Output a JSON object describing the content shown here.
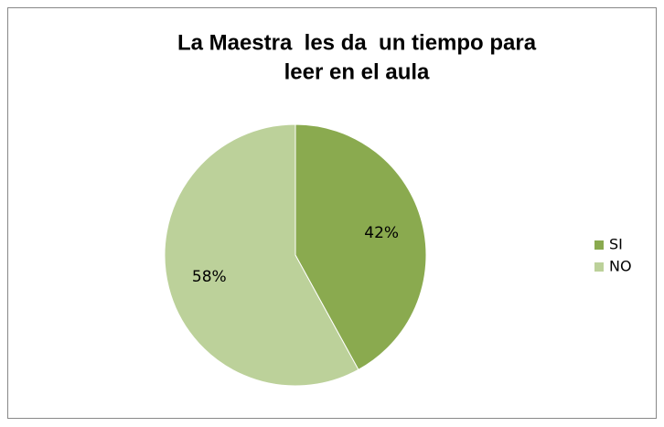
{
  "chart_data": {
    "type": "pie",
    "title": [
      "La Maestra  les da  un tiempo para",
      "leer en el aula"
    ],
    "categories": [
      "SI",
      "NO"
    ],
    "values": [
      42,
      58
    ],
    "value_labels": [
      "42%",
      "58%"
    ],
    "colors": [
      "#8aaa4f",
      "#bcd19a"
    ],
    "legend": "right"
  }
}
